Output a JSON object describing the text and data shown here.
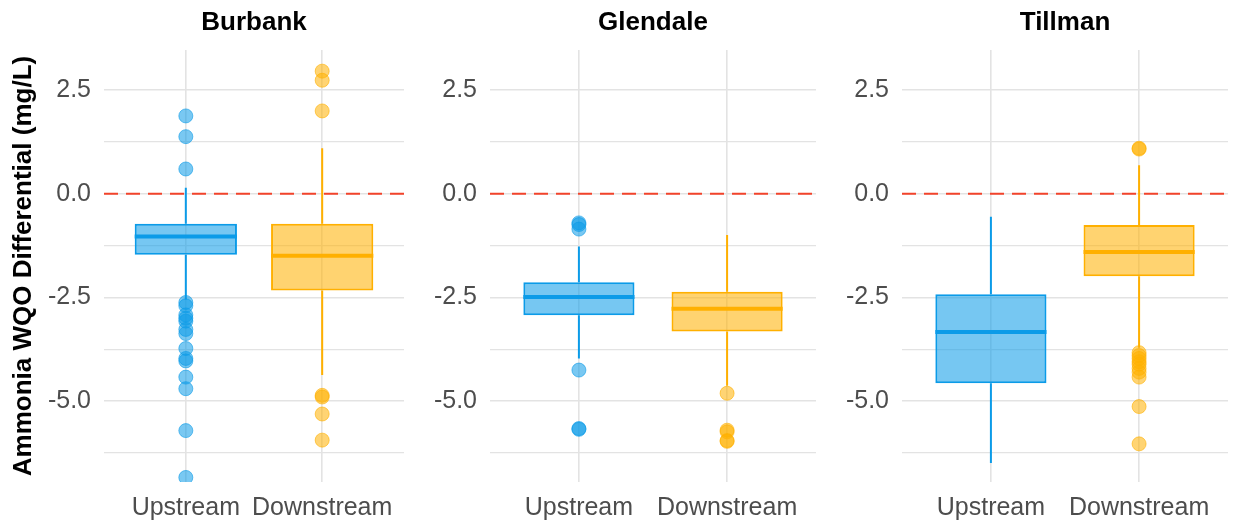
{
  "chart_data": [
    {
      "type": "box",
      "title": "Burbank",
      "ylabel": "Ammonia WQO Differential (mg/L)",
      "categories": [
        "Upstream",
        "Downstream"
      ],
      "colors": [
        "#0b9be8",
        "#ffb000"
      ],
      "boxes": [
        {
          "low": -2.55,
          "q1": -1.47,
          "median": -1.03,
          "q3": -0.72,
          "high": 0.15,
          "outliers": [
            1.88,
            1.38,
            0.6,
            -2.62,
            -2.7,
            -2.92,
            -3.0,
            -3.07,
            -3.27,
            -3.37,
            -3.73,
            -3.97,
            -4.03,
            -4.42,
            -4.7,
            -5.71,
            -6.84
          ]
        },
        {
          "low": -4.37,
          "q1": -2.33,
          "median": -1.49,
          "q3": -0.72,
          "high": 1.1,
          "outliers": [
            2.96,
            2.74,
            2.0,
            -4.86,
            -4.9,
            -5.31,
            -5.94
          ]
        }
      ],
      "ylim": [
        -6.95,
        3.47
      ],
      "yticks": [
        {
          "value": -6.25,
          "label": null
        },
        {
          "value": -5,
          "label": "-5.0"
        },
        {
          "value": -3.75,
          "label": null
        },
        {
          "value": -2.5,
          "label": "-2.5"
        },
        {
          "value": -1.25,
          "label": null
        },
        {
          "value": 0,
          "label": "0.0"
        },
        {
          "value": 1.25,
          "label": null
        },
        {
          "value": 2.5,
          "label": "2.5"
        }
      ],
      "grid": true,
      "ref_lines": [
        {
          "axis": "y",
          "value": 0,
          "color": "#f2432b",
          "line_style": "dashed"
        }
      ]
    },
    {
      "type": "box",
      "title": "Glendale",
      "categories": [
        "Upstream",
        "Downstream"
      ],
      "colors": [
        "#0b9be8",
        "#ffb000"
      ],
      "boxes": [
        {
          "low": -3.97,
          "q1": -2.93,
          "median": -2.49,
          "q3": -2.13,
          "high": -1.27,
          "outliers": [
            -0.7,
            -0.74,
            -0.85,
            -4.25,
            -5.66,
            -5.68
          ]
        },
        {
          "low": -4.63,
          "q1": -3.32,
          "median": -2.77,
          "q3": -2.36,
          "high": -0.99,
          "outliers": [
            -4.81,
            -5.7,
            -5.74,
            -5.95,
            -5.97
          ]
        }
      ],
      "ylim": [
        -6.95,
        3.47
      ],
      "yticks": [
        {
          "value": -6.25,
          "label": null
        },
        {
          "value": -5,
          "label": "-5.0"
        },
        {
          "value": -3.75,
          "label": null
        },
        {
          "value": -2.5,
          "label": "-2.5"
        },
        {
          "value": -1.25,
          "label": null
        },
        {
          "value": 0,
          "label": "0.0"
        },
        {
          "value": 1.25,
          "label": null
        },
        {
          "value": 2.5,
          "label": "2.5"
        }
      ],
      "grid": true,
      "ref_lines": [
        {
          "axis": "y",
          "value": 0,
          "color": "#f2432b",
          "line_style": "dashed"
        }
      ]
    },
    {
      "type": "box",
      "title": "Tillman",
      "categories": [
        "Upstream",
        "Downstream"
      ],
      "colors": [
        "#0b9be8",
        "#ffb000"
      ],
      "boxes": [
        {
          "low": -6.49,
          "q1": -4.57,
          "median": -3.33,
          "q3": -2.42,
          "high": -0.55
        },
        {
          "low": -3.71,
          "q1": -1.99,
          "median": -1.4,
          "q3": -0.75,
          "high": 0.69,
          "outliers": [
            1.08,
            1.1,
            -3.83,
            -3.9,
            -3.97,
            -4.05,
            -4.11,
            -4.21,
            -4.3,
            -4.42,
            -5.13,
            -6.03
          ]
        }
      ],
      "ylim": [
        -6.95,
        3.47
      ],
      "yticks": [
        {
          "value": -6.25,
          "label": null
        },
        {
          "value": -5,
          "label": "-5.0"
        },
        {
          "value": -3.75,
          "label": null
        },
        {
          "value": -2.5,
          "label": "-2.5"
        },
        {
          "value": -1.25,
          "label": null
        },
        {
          "value": 0,
          "label": "0.0"
        },
        {
          "value": 1.25,
          "label": null
        },
        {
          "value": 2.5,
          "label": "2.5"
        }
      ],
      "grid": true,
      "ref_lines": [
        {
          "axis": "y",
          "value": 0,
          "color": "#f2432b",
          "line_style": "dashed"
        }
      ]
    }
  ]
}
